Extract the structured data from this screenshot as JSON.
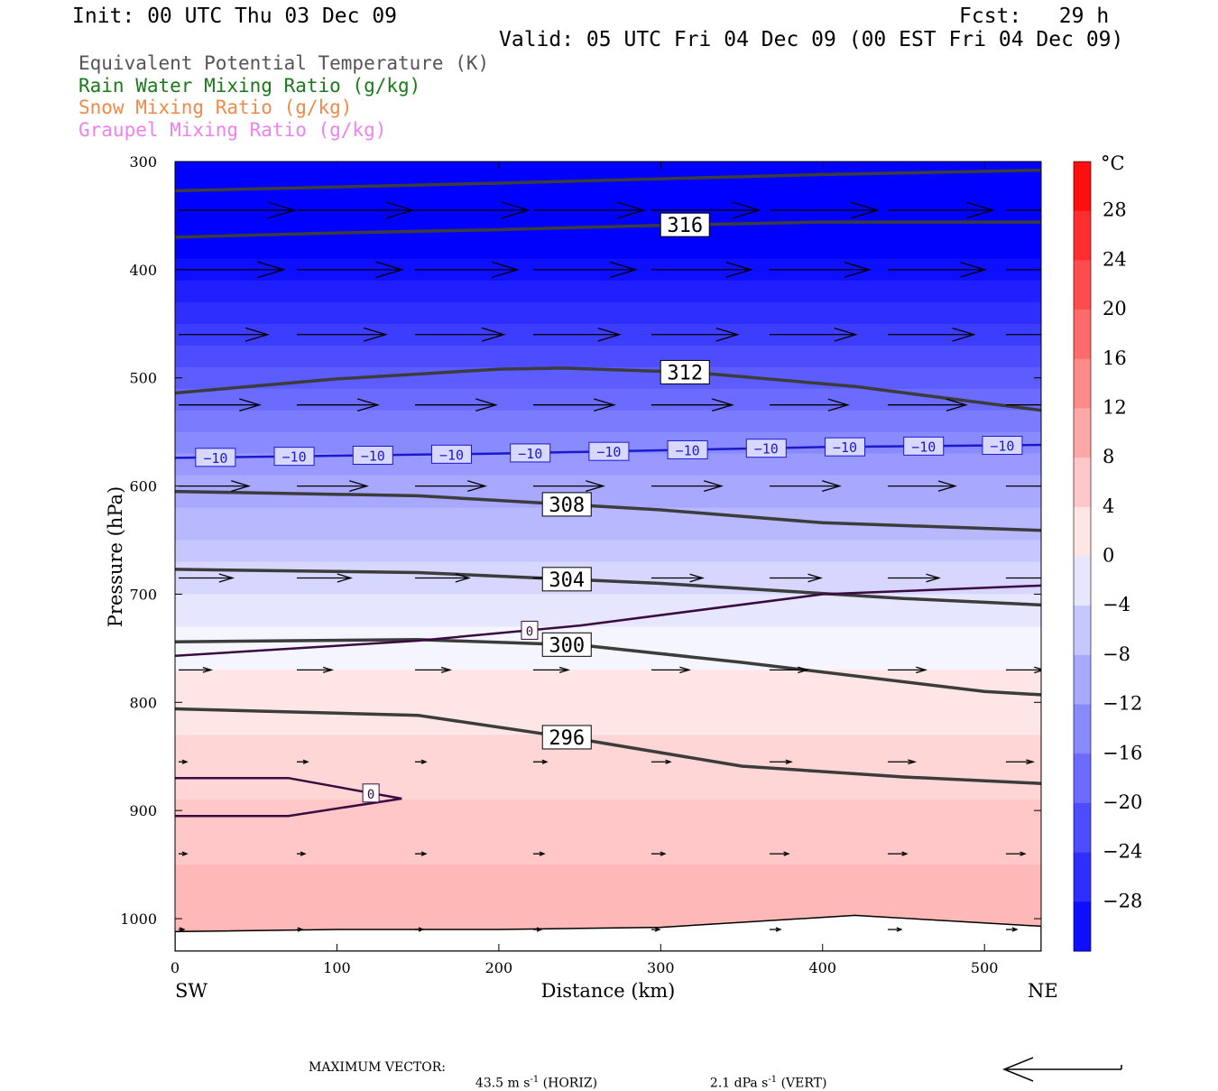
{
  "header": {
    "init": "Init: 00 UTC Thu 03 Dec 09",
    "fcst": "Fcst:   29 h",
    "valid": "Valid: 05 UTC Fri 04 Dec 09 (00 EST Fri 04 Dec 09)"
  },
  "legend": [
    {
      "label": "Equivalent Potential Temperature (K)",
      "color": "#555555"
    },
    {
      "label": "Rain Water Mixing Ratio (g/kg)",
      "color": "#1a7a1a"
    },
    {
      "label": "Snow Mixing Ratio (g/kg)",
      "color": "#f08a4a"
    },
    {
      "label": "Graupel Mixing Ratio (g/kg)",
      "color": "#ee82ee"
    }
  ],
  "footer": {
    "label": "MAXIMUM VECTOR:",
    "horiz_value": "43.5 m s",
    "horiz_exp": "-1",
    "horiz_tag": "(HORIZ)",
    "vert_value": "2.1 dPa s",
    "vert_exp": "-1",
    "vert_tag": "(VERT)"
  },
  "chart_data": {
    "type": "contour",
    "xlabel": "Distance (km)",
    "ylabel": "Pressure (hPa)",
    "xlim": [
      0,
      535
    ],
    "ylim": [
      1030,
      300
    ],
    "x_ticks": [
      0,
      100,
      200,
      300,
      400,
      500
    ],
    "y_ticks": [
      300,
      400,
      500,
      600,
      700,
      800,
      900,
      1000
    ],
    "x_end_labels": {
      "left": "SW",
      "right": "NE"
    },
    "colorbar": {
      "unit": "°C",
      "tick_labels": [
        "28",
        "24",
        "20",
        "16",
        "12",
        "8",
        "4",
        "0",
        "−4",
        "−8",
        "−12",
        "−16",
        "−20",
        "−24",
        "−28"
      ],
      "range": [
        -32,
        32
      ]
    },
    "theta_e_contours": [
      {
        "label": "316",
        "x": [
          0,
          100,
          200,
          300,
          400,
          535
        ],
        "p": [
          370,
          366,
          363,
          359,
          356,
          356
        ]
      },
      {
        "label": "",
        "x": [
          0,
          200,
          400,
          535
        ],
        "p": [
          327,
          320,
          312,
          308
        ]
      },
      {
        "label": "312",
        "x": [
          0,
          100,
          200,
          240,
          320,
          420,
          535
        ],
        "p": [
          514,
          501,
          492,
          491,
          495,
          508,
          530
        ]
      },
      {
        "label": "308",
        "x": [
          0,
          150,
          300,
          400,
          535
        ],
        "p": [
          605,
          609,
          622,
          634,
          641
        ]
      },
      {
        "label": "304",
        "x": [
          0,
          150,
          300,
          450,
          535
        ],
        "p": [
          677,
          680,
          690,
          704,
          710
        ]
      },
      {
        "label": "300",
        "x": [
          0,
          150,
          250,
          350,
          500,
          535
        ],
        "p": [
          744,
          742,
          747,
          763,
          790,
          793
        ]
      },
      {
        "label": "296",
        "x": [
          0,
          150,
          250,
          350,
          450,
          535
        ],
        "p": [
          806,
          812,
          834,
          859,
          869,
          875
        ]
      }
    ],
    "temperature_contours": [
      {
        "label": "-10",
        "x": [
          0,
          100,
          200,
          300,
          400,
          535
        ],
        "p": [
          574,
          572,
          570,
          567,
          564,
          562
        ]
      },
      {
        "label": "0",
        "x": [
          0,
          150,
          250,
          400,
          535
        ],
        "p": [
          757,
          743,
          729,
          700,
          692
        ]
      },
      {
        "label": "0",
        "x": [
          0,
          70,
          140,
          70,
          0
        ],
        "p": [
          870,
          870,
          889,
          905,
          905
        ]
      }
    ],
    "wind_rows": [
      {
        "p": 345,
        "x": [
          0,
          73,
          146,
          219,
          292,
          365,
          438,
          511
        ],
        "u": [
          43,
          43,
          42,
          41,
          40,
          40,
          39,
          38
        ]
      },
      {
        "p": 400,
        "x": [
          0,
          73,
          146,
          219,
          292,
          365,
          438,
          511
        ],
        "u": [
          39,
          39,
          38,
          38,
          37,
          37,
          36,
          36
        ]
      },
      {
        "p": 460,
        "x": [
          0,
          73,
          146,
          219,
          292,
          365,
          438,
          511
        ],
        "u": [
          33,
          33,
          33,
          32,
          32,
          32,
          32,
          31
        ]
      },
      {
        "p": 525,
        "x": [
          0,
          73,
          146,
          219,
          292,
          365,
          438,
          511
        ],
        "u": [
          30,
          30,
          30,
          30,
          30,
          29,
          29,
          29
        ]
      },
      {
        "p": 600,
        "x": [
          0,
          73,
          146,
          219,
          292,
          365,
          438,
          511
        ],
        "u": [
          26,
          26,
          26,
          26,
          26,
          26,
          25,
          25
        ]
      },
      {
        "p": 685,
        "x": [
          0,
          73,
          146,
          219,
          292,
          365,
          438,
          511
        ],
        "u": [
          20,
          20,
          20,
          19,
          19,
          19,
          19,
          19
        ]
      },
      {
        "p": 770,
        "x": [
          0,
          73,
          146,
          219,
          292,
          365,
          438,
          511
        ],
        "u": [
          12,
          13,
          13,
          13,
          14,
          14,
          14,
          14
        ]
      },
      {
        "p": 855,
        "x": [
          0,
          73,
          146,
          219,
          292,
          365,
          438,
          511
        ],
        "u": [
          3,
          4,
          4,
          5,
          7,
          8,
          10,
          10
        ]
      },
      {
        "p": 940,
        "x": [
          0,
          73,
          146,
          219,
          292,
          365,
          438,
          511
        ],
        "u": [
          3,
          3,
          4,
          4,
          5,
          7,
          7,
          7
        ]
      },
      {
        "p": 1010,
        "x": [
          0,
          73,
          146,
          219,
          292,
          365,
          438,
          511
        ],
        "u": [
          2,
          2,
          3,
          3,
          3,
          4,
          5,
          4
        ]
      }
    ],
    "surface_pressure": {
      "x": [
        0,
        100,
        200,
        300,
        420,
        535
      ],
      "p": [
        1012,
        1010,
        1010,
        1008,
        997,
        1007
      ]
    }
  }
}
